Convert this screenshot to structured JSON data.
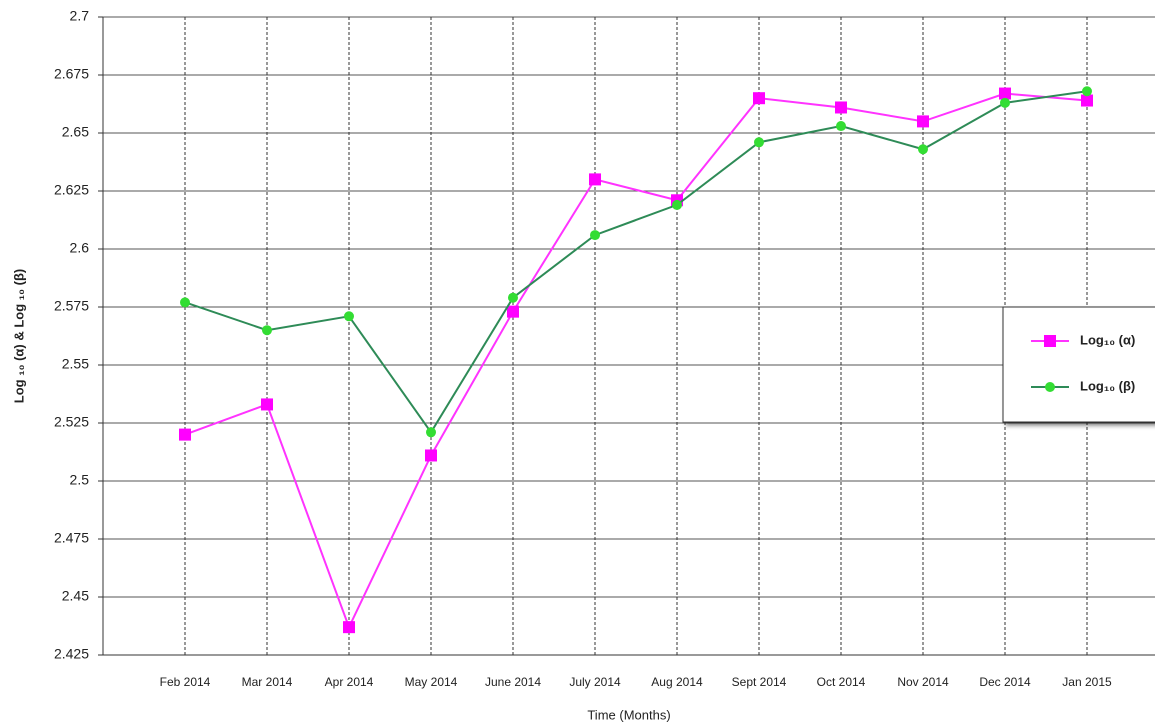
{
  "chart_data": {
    "type": "line",
    "y_label": "Log ₁₀ (α) & Log ₁₀ (β)",
    "x_label": "Time (Months)",
    "categories": [
      "Feb 2014",
      "Mar 2014",
      "Apr 2014",
      "May 2014",
      "June 2014",
      "July 2014",
      "Aug 2014",
      "Sept 2014",
      "Oct 2014",
      "Nov 2014",
      "Dec 2014",
      "Jan 2015"
    ],
    "series": [
      {
        "name": "Log₁₀ (α)",
        "color": "#ff33ff",
        "marker": "square",
        "values": [
          2.52,
          2.533,
          2.437,
          2.511,
          2.573,
          2.63,
          2.621,
          2.665,
          2.661,
          2.655,
          2.667,
          2.664
        ]
      },
      {
        "name": "Log₁₀ (β)",
        "color": "#2e8b57",
        "marker": "circle",
        "values": [
          2.577,
          2.565,
          2.571,
          2.521,
          2.579,
          2.606,
          2.619,
          2.646,
          2.653,
          2.643,
          2.663,
          2.668
        ]
      }
    ],
    "ylim": [
      2.425,
      2.7
    ],
    "yticks": [
      2.425,
      2.45,
      2.475,
      2.5,
      2.525,
      2.55,
      2.575,
      2.6,
      2.625,
      2.65,
      2.675,
      2.7
    ],
    "grid": true,
    "legend": "right"
  }
}
